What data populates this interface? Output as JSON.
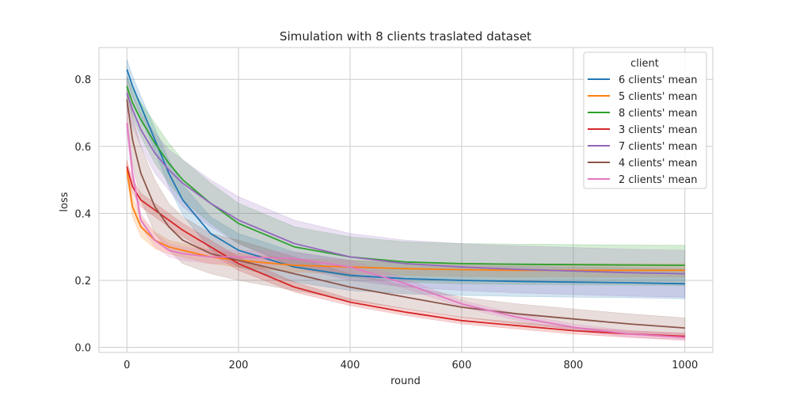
{
  "chart_data": {
    "type": "line",
    "title": "Simulation with 8 clients traslated dataset",
    "xlabel": "round",
    "ylabel": "loss",
    "xlim": [
      -50,
      1050
    ],
    "ylim": [
      -0.015,
      0.895
    ],
    "xticks": [
      0,
      200,
      400,
      600,
      800,
      1000
    ],
    "yticks": [
      0.0,
      0.2,
      0.4,
      0.6,
      0.8
    ],
    "grid": true,
    "legend": {
      "title": "client",
      "position": "top-right"
    },
    "x": [
      0,
      10,
      25,
      50,
      75,
      100,
      150,
      200,
      300,
      400,
      500,
      600,
      700,
      800,
      900,
      1000
    ],
    "series": [
      {
        "name": "6 clients' mean",
        "color": "#1f77b4",
        "values": [
          0.83,
          0.78,
          0.72,
          0.62,
          0.52,
          0.44,
          0.34,
          0.29,
          0.24,
          0.215,
          0.205,
          0.2,
          0.197,
          0.195,
          0.193,
          0.19
        ],
        "band": [
          0.03,
          0.03,
          0.03,
          0.035,
          0.04,
          0.045,
          0.05,
          0.05,
          0.045,
          0.045,
          0.045,
          0.045,
          0.045,
          0.045,
          0.045,
          0.045
        ]
      },
      {
        "name": "5 clients' mean",
        "color": "#ff7f0e",
        "values": [
          0.53,
          0.42,
          0.36,
          0.32,
          0.3,
          0.29,
          0.27,
          0.26,
          0.245,
          0.24,
          0.235,
          0.232,
          0.23,
          0.23,
          0.23,
          0.23
        ],
        "band": [
          0.02,
          0.03,
          0.03,
          0.025,
          0.02,
          0.02,
          0.02,
          0.02,
          0.02,
          0.02,
          0.02,
          0.02,
          0.02,
          0.02,
          0.02,
          0.02
        ]
      },
      {
        "name": "8 clients' mean",
        "color": "#2ca02c",
        "values": [
          0.78,
          0.73,
          0.68,
          0.61,
          0.55,
          0.5,
          0.43,
          0.37,
          0.3,
          0.27,
          0.255,
          0.25,
          0.248,
          0.247,
          0.246,
          0.245
        ],
        "band": [
          0.03,
          0.04,
          0.05,
          0.06,
          0.06,
          0.06,
          0.06,
          0.06,
          0.06,
          0.06,
          0.06,
          0.06,
          0.06,
          0.06,
          0.06,
          0.06
        ]
      },
      {
        "name": "3 clients' mean",
        "color": "#d62728",
        "values": [
          0.54,
          0.48,
          0.44,
          0.41,
          0.38,
          0.35,
          0.3,
          0.25,
          0.18,
          0.135,
          0.105,
          0.08,
          0.065,
          0.05,
          0.04,
          0.033
        ],
        "band": [
          0.02,
          0.02,
          0.02,
          0.02,
          0.02,
          0.02,
          0.02,
          0.02,
          0.015,
          0.01,
          0.01,
          0.01,
          0.01,
          0.01,
          0.01,
          0.01
        ]
      },
      {
        "name": "7 clients' mean",
        "color": "#9467bd",
        "values": [
          0.76,
          0.71,
          0.65,
          0.58,
          0.53,
          0.49,
          0.43,
          0.38,
          0.31,
          0.27,
          0.25,
          0.24,
          0.233,
          0.228,
          0.223,
          0.22
        ],
        "band": [
          0.05,
          0.05,
          0.05,
          0.06,
          0.06,
          0.07,
          0.07,
          0.07,
          0.07,
          0.07,
          0.07,
          0.07,
          0.07,
          0.07,
          0.07,
          0.07
        ]
      },
      {
        "name": "4 clients' mean",
        "color": "#8c564b",
        "values": [
          0.74,
          0.62,
          0.52,
          0.42,
          0.36,
          0.32,
          0.28,
          0.26,
          0.22,
          0.18,
          0.15,
          0.12,
          0.1,
          0.085,
          0.07,
          0.058
        ],
        "band": [
          0.05,
          0.07,
          0.08,
          0.08,
          0.07,
          0.07,
          0.06,
          0.06,
          0.05,
          0.04,
          0.035,
          0.03,
          0.03,
          0.03,
          0.03,
          0.03
        ]
      },
      {
        "name": "2 clients' mean",
        "color": "#e377c2",
        "values": [
          0.67,
          0.52,
          0.38,
          0.32,
          0.29,
          0.28,
          0.27,
          0.27,
          0.265,
          0.24,
          0.19,
          0.13,
          0.09,
          0.06,
          0.04,
          0.03
        ],
        "band": [
          0.03,
          0.03,
          0.02,
          0.02,
          0.02,
          0.02,
          0.02,
          0.02,
          0.02,
          0.02,
          0.015,
          0.01,
          0.01,
          0.01,
          0.01,
          0.01
        ]
      }
    ]
  }
}
